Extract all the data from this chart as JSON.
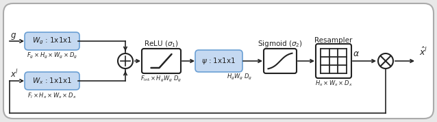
{
  "box_blue_fill": "#c5d9f1",
  "box_blue_edge": "#6a9fd4",
  "box_white_fill": "#ffffff",
  "box_white_edge": "#222222",
  "line_color": "#222222",
  "text_color": "#222222",
  "fig_width": 6.38,
  "fig_height": 1.78,
  "dpi": 100,
  "outer_bg": "#e8e8e8",
  "inner_bg": "#ffffff"
}
